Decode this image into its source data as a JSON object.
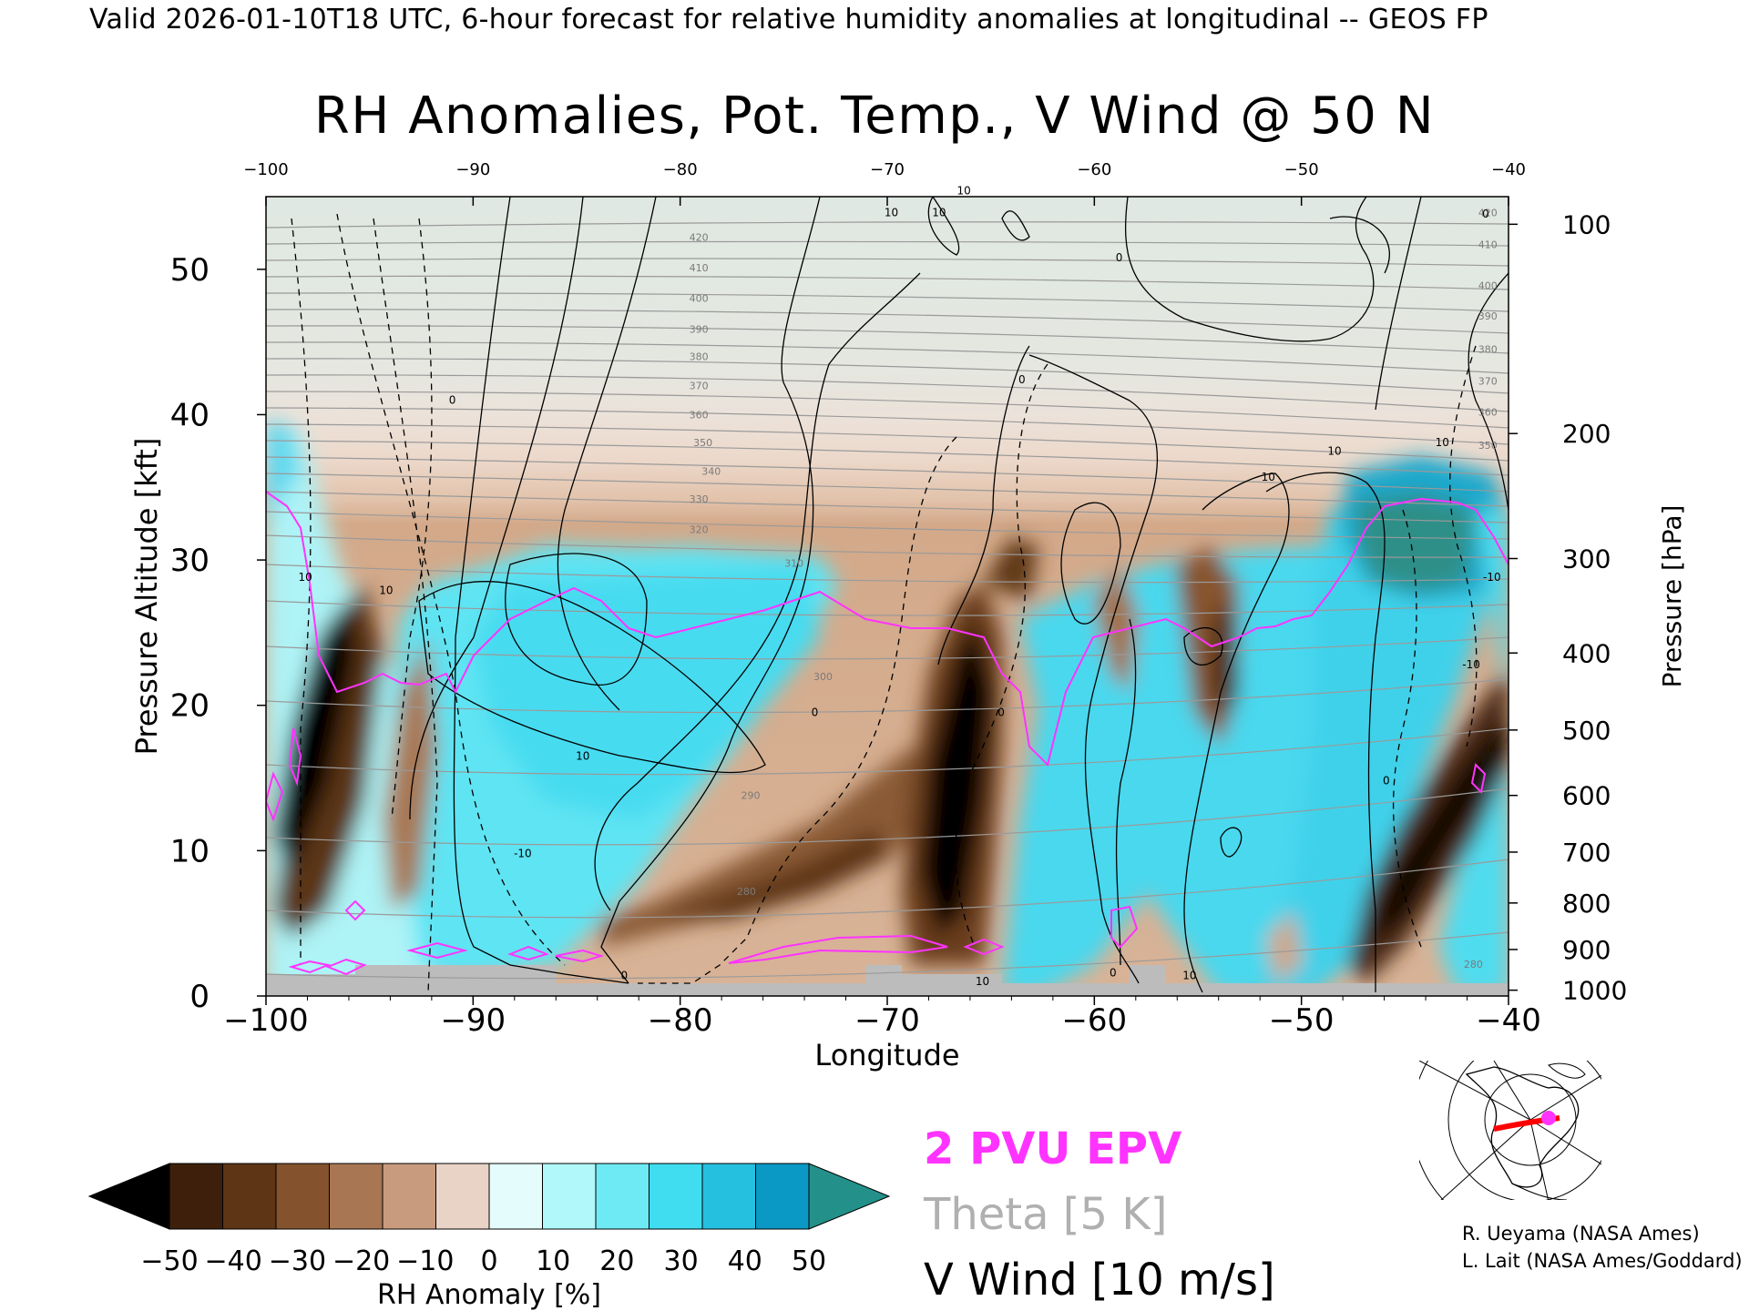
{
  "caption": "Valid 2026-01-10T18 UTC, 6-hour forecast for relative humidity anomalies at longitudinal -- GEOS FP",
  "chart_data": {
    "type": "heatmap",
    "title": "RH Anomalies, Pot. Temp., V Wind @ 50 N",
    "xlabel": "Longitude",
    "ylabel": "Pressure Altitude [kft]",
    "y2label": "Pressure [hPa]",
    "xlim": [
      -100,
      -40
    ],
    "ylim": [
      0,
      55
    ],
    "x_ticks": [
      "−100",
      "−90",
      "−80",
      "−70",
      "−60",
      "−50",
      "−40"
    ],
    "x_ticks_top": [
      "−100",
      "−90",
      "−80",
      "−70",
      "−60",
      "−50",
      "−40"
    ],
    "y_ticks": [
      "0",
      "10",
      "20",
      "30",
      "40",
      "50"
    ],
    "y_tick_values": [
      0,
      10,
      20,
      30,
      40,
      50
    ],
    "pressure_ticks": [
      {
        "label": "100",
        "kft": 53.1
      },
      {
        "label": "200",
        "kft": 38.7
      },
      {
        "label": "300",
        "kft": 30.1
      },
      {
        "label": "400",
        "kft": 23.6
      },
      {
        "label": "500",
        "kft": 18.3
      },
      {
        "label": "600",
        "kft": 13.8
      },
      {
        "label": "700",
        "kft": 9.9
      },
      {
        "label": "800",
        "kft": 6.4
      },
      {
        "label": "900",
        "kft": 3.2
      },
      {
        "label": "1000",
        "kft": 0.4
      }
    ],
    "theta_labels": [
      {
        "text": "420",
        "x": -79.1,
        "kft": 52.2
      },
      {
        "text": "410",
        "x": -79.1,
        "kft": 50.1
      },
      {
        "text": "400",
        "x": -79.1,
        "kft": 48.0
      },
      {
        "text": "390",
        "x": -79.1,
        "kft": 45.9
      },
      {
        "text": "380",
        "x": -79.1,
        "kft": 44.0
      },
      {
        "text": "370",
        "x": -79.1,
        "kft": 42.0
      },
      {
        "text": "360",
        "x": -79.1,
        "kft": 40.0
      },
      {
        "text": "350",
        "x": -78.9,
        "kft": 38.1
      },
      {
        "text": "340",
        "x": -78.5,
        "kft": 36.1
      },
      {
        "text": "330",
        "x": -79.1,
        "kft": 34.2
      },
      {
        "text": "320",
        "x": -79.1,
        "kft": 32.1
      },
      {
        "text": "310",
        "x": -74.5,
        "kft": 29.8
      },
      {
        "text": "300",
        "x": -73.1,
        "kft": 22.0
      },
      {
        "text": "290",
        "x": -76.6,
        "kft": 13.8
      },
      {
        "text": "280",
        "x": -76.8,
        "kft": 7.2
      },
      {
        "text": "420",
        "x": -41.0,
        "kft": 53.9
      },
      {
        "text": "410",
        "x": -41.0,
        "kft": 51.7
      },
      {
        "text": "400",
        "x": -41.0,
        "kft": 48.9
      },
      {
        "text": "390",
        "x": -41.0,
        "kft": 46.8
      },
      {
        "text": "380",
        "x": -41.0,
        "kft": 44.5
      },
      {
        "text": "370",
        "x": -41.0,
        "kft": 42.3
      },
      {
        "text": "360",
        "x": -41.0,
        "kft": 40.2
      },
      {
        "text": "350",
        "x": -41.0,
        "kft": 37.9
      },
      {
        "text": "280",
        "x": -41.7,
        "kft": 2.2
      }
    ],
    "wind_labels": [
      {
        "text": "10",
        "x": -98.1,
        "kft": 28.8
      },
      {
        "text": "10",
        "x": -94.2,
        "kft": 27.9
      },
      {
        "text": "0",
        "x": -91.0,
        "kft": 41.0
      },
      {
        "text": "-10",
        "x": -87.6,
        "kft": 9.8
      },
      {
        "text": "10",
        "x": -84.7,
        "kft": 16.5
      },
      {
        "text": "0",
        "x": -82.7,
        "kft": 1.4
      },
      {
        "text": "0",
        "x": -73.5,
        "kft": 19.5
      },
      {
        "text": "10",
        "x": -69.8,
        "kft": 53.9
      },
      {
        "text": "10",
        "x": -67.5,
        "kft": 53.9
      },
      {
        "text": "10",
        "x": -66.3,
        "kft": 55.4
      },
      {
        "text": "0",
        "x": -63.5,
        "kft": 42.4
      },
      {
        "text": "0",
        "x": -64.5,
        "kft": 19.5
      },
      {
        "text": "10",
        "x": -65.4,
        "kft": 1.0
      },
      {
        "text": "0",
        "x": -58.8,
        "kft": 50.8
      },
      {
        "text": "0",
        "x": -59.1,
        "kft": 1.6
      },
      {
        "text": "10",
        "x": -55.4,
        "kft": 1.4
      },
      {
        "text": "10",
        "x": -51.6,
        "kft": 35.7
      },
      {
        "text": "10",
        "x": -48.4,
        "kft": 37.5
      },
      {
        "text": "0",
        "x": -45.9,
        "kft": 14.8
      },
      {
        "text": "0",
        "x": -41.1,
        "kft": 53.8
      },
      {
        "text": "10",
        "x": -43.2,
        "kft": 38.1
      },
      {
        "text": "-10",
        "x": -41.8,
        "kft": 22.8
      },
      {
        "text": "-10",
        "x": -40.8,
        "kft": 28.8
      }
    ],
    "colorbar": {
      "label": "RH Anomaly [%]",
      "ticks": [
        "−50",
        "−40",
        "−30",
        "−20",
        "−10",
        "0",
        "10",
        "20",
        "30",
        "40",
        "50"
      ],
      "colors": [
        "#000000",
        "#3d1f0b",
        "#5e3515",
        "#84532d",
        "#a87652",
        "#c99b7e",
        "#e9d3c6",
        "#e4fcfc",
        "#b0f8fa",
        "#6eeaf5",
        "#40dcf0",
        "#25bfe0",
        "#0a98c5",
        "#239189"
      ]
    },
    "legend": [
      {
        "label": "2 PVU EPV",
        "color": "#ff33ff"
      },
      {
        "label": "Theta [5 K]",
        "color": "#b0b0b0"
      },
      {
        "label": "V Wind [10 m/s]",
        "color": "#000000"
      }
    ],
    "credits": [
      "R. Ueyama (NASA Ames)",
      "L. Lait (NASA Ames/Goddard)"
    ]
  }
}
